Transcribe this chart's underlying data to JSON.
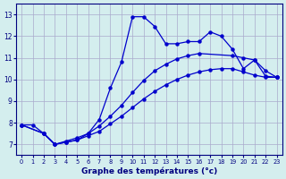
{
  "xlabel": "Graphe des températures (°c)",
  "bg_color": "#d4eeee",
  "line_color": "#0000cc",
  "grid_color": "#aaaacc",
  "series1_x": [
    0,
    1,
    2,
    3,
    4,
    5,
    6,
    7,
    8,
    9,
    10,
    11,
    12,
    13,
    14,
    15,
    16,
    17,
    18,
    19,
    20,
    21,
    22,
    23
  ],
  "series1_y": [
    7.9,
    7.9,
    7.5,
    7.0,
    7.1,
    7.2,
    7.5,
    8.15,
    9.6,
    10.8,
    12.9,
    12.9,
    12.45,
    11.65,
    11.65,
    11.75,
    11.75,
    12.2,
    12.0,
    11.4,
    10.5,
    10.9,
    10.15,
    10.1
  ],
  "series2_x": [
    0,
    2,
    3,
    4,
    5,
    6,
    7,
    8,
    9,
    10,
    11,
    12,
    13,
    14,
    15,
    16,
    19,
    20,
    21,
    22,
    23
  ],
  "series2_y": [
    7.9,
    7.5,
    7.0,
    7.15,
    7.3,
    7.5,
    7.85,
    8.3,
    8.8,
    9.4,
    9.95,
    10.4,
    10.7,
    10.95,
    11.1,
    11.2,
    11.1,
    11.0,
    10.9,
    10.4,
    10.1
  ],
  "series3_x": [
    0,
    2,
    3,
    4,
    5,
    6,
    7,
    8,
    9,
    10,
    11,
    12,
    13,
    14,
    15,
    16,
    17,
    18,
    19,
    20,
    21,
    22,
    23
  ],
  "series3_y": [
    7.9,
    7.5,
    7.0,
    7.1,
    7.2,
    7.4,
    7.6,
    7.95,
    8.3,
    8.7,
    9.1,
    9.45,
    9.75,
    10.0,
    10.2,
    10.35,
    10.45,
    10.5,
    10.5,
    10.35,
    10.2,
    10.1,
    10.1
  ],
  "xlim": [
    -0.5,
    23.5
  ],
  "ylim": [
    6.5,
    13.5
  ],
  "xticks": [
    0,
    1,
    2,
    3,
    4,
    5,
    6,
    7,
    8,
    9,
    10,
    11,
    12,
    13,
    14,
    15,
    16,
    17,
    18,
    19,
    20,
    21,
    22,
    23
  ],
  "yticks": [
    7,
    8,
    9,
    10,
    11,
    12,
    13
  ]
}
